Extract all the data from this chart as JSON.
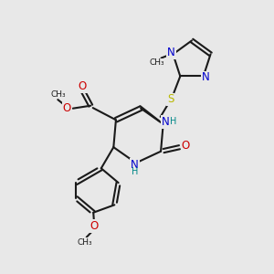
{
  "background_color": "#e8e8e8",
  "bond_color": "#1a1a1a",
  "bond_width": 1.5,
  "atom_colors": {
    "N": "#0000cc",
    "O": "#cc0000",
    "S": "#b8b800",
    "C": "#1a1a1a",
    "H": "#008888"
  },
  "font_size_atom": 8.5,
  "font_size_small": 7.0,
  "fig_size": [
    3.0,
    3.0
  ],
  "dpi": 100,
  "xlim": [
    0,
    10
  ],
  "ylim": [
    0,
    10
  ]
}
